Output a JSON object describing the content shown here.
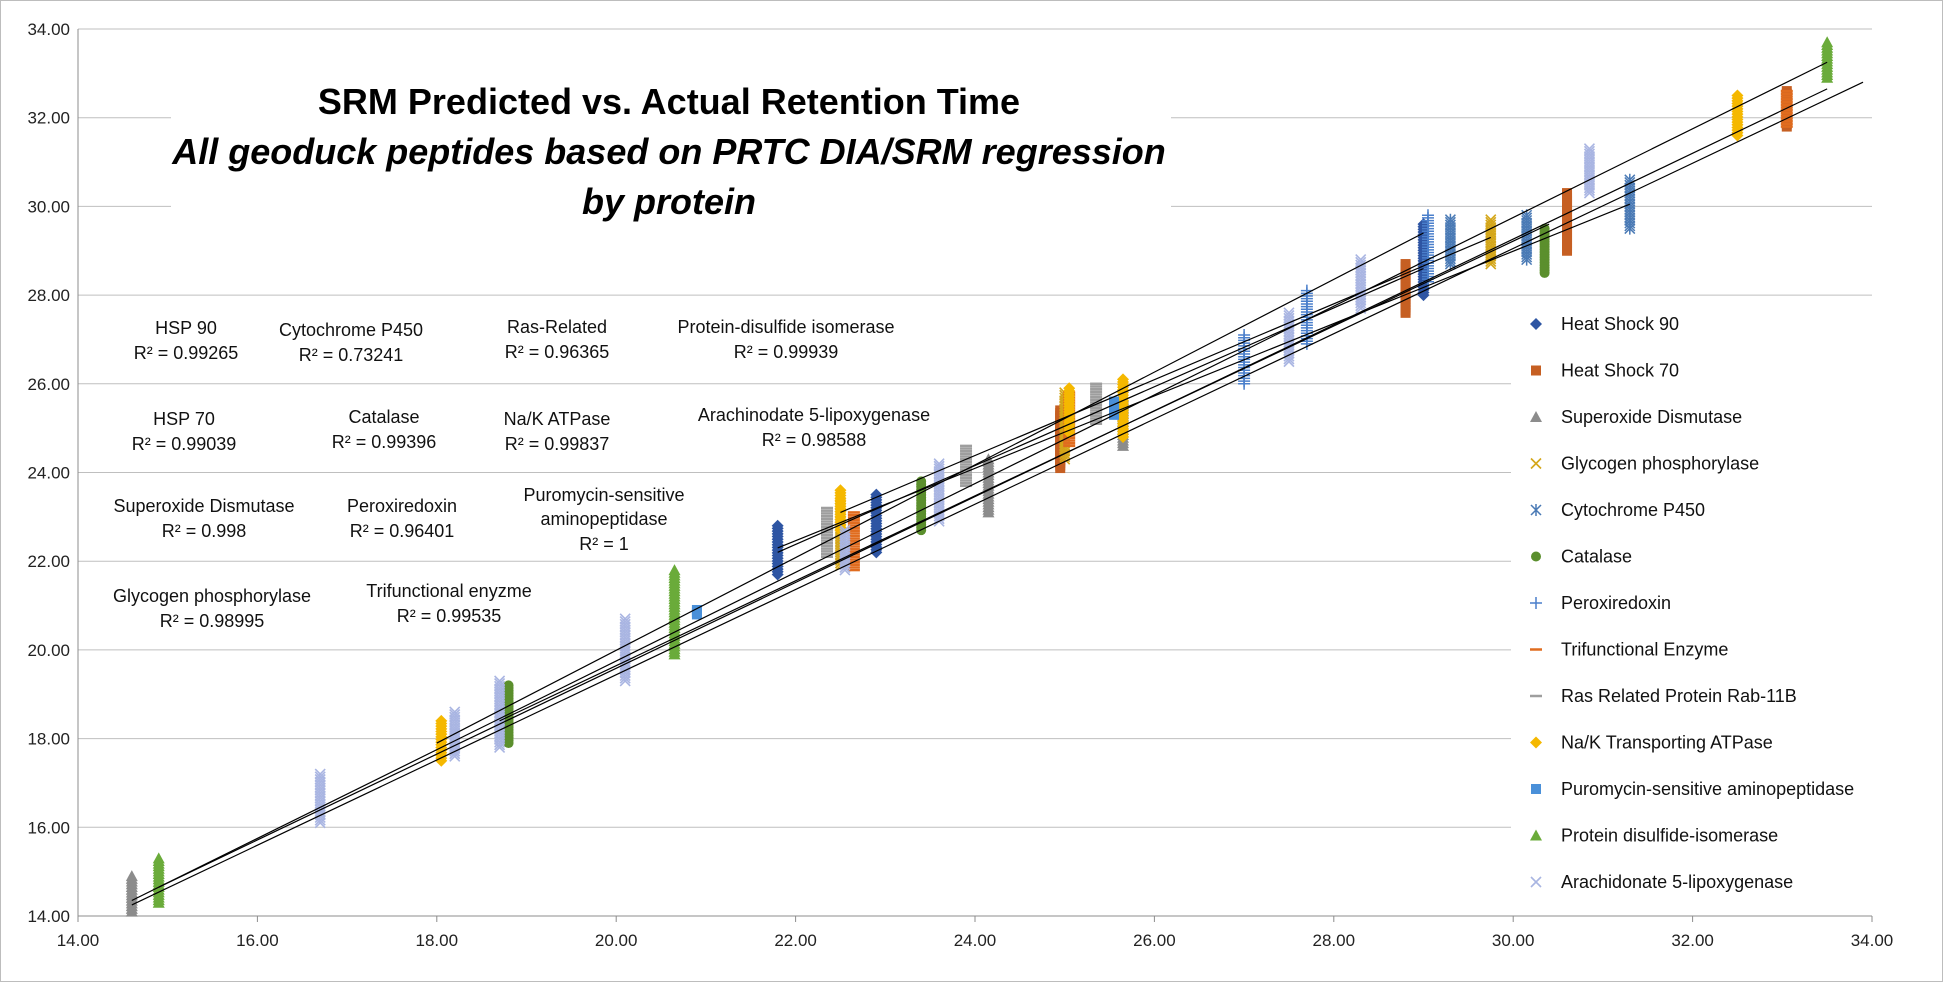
{
  "chart_data": {
    "type": "scatter",
    "title": "SRM Predicted vs. Actual Retention Time",
    "subtitle": "All geoduck peptides based on PRTC DIA/SRM regression",
    "subtitle2": "by protein",
    "xlim": [
      14,
      34
    ],
    "ylim": [
      14,
      34
    ],
    "x_ticks": [
      "14.00",
      "16.00",
      "18.00",
      "20.00",
      "22.00",
      "24.00",
      "26.00",
      "28.00",
      "30.00",
      "32.00",
      "34.00"
    ],
    "y_ticks": [
      "14.00",
      "16.00",
      "18.00",
      "20.00",
      "22.00",
      "24.00",
      "26.00",
      "28.00",
      "30.00",
      "32.00",
      "34.00"
    ],
    "grid": "horizontal",
    "legend_position": "right",
    "series": [
      {
        "name": "Heat Shock 90",
        "marker": "diamond",
        "color": "#2e55a3",
        "x": [
          21.8,
          22.9,
          29.0
        ],
        "y_low": [
          21.7,
          22.2,
          28.0
        ],
        "y_high": [
          22.8,
          23.5,
          29.6
        ]
      },
      {
        "name": "Heat Shock 70",
        "marker": "square",
        "color": "#c65f22",
        "x": [
          24.95,
          28.8,
          30.6,
          33.05
        ],
        "y_low": [
          24.1,
          27.6,
          29.0,
          31.8
        ],
        "y_high": [
          25.4,
          28.7,
          30.3,
          32.6
        ]
      },
      {
        "name": "Superoxide Dismutase",
        "marker": "triangle",
        "color": "#8c8c8c",
        "x": [
          14.6,
          24.15,
          25.65
        ],
        "y_low": [
          14.1,
          23.1,
          24.6
        ],
        "y_high": [
          14.9,
          24.3,
          25.7
        ]
      },
      {
        "name": "Glycogen phosphorylase",
        "marker": "x",
        "color": "#d4a619",
        "x": [
          22.5,
          25.0,
          29.75
        ],
        "y_low": [
          21.9,
          24.3,
          28.7
        ],
        "y_high": [
          23.5,
          25.8,
          29.7
        ]
      },
      {
        "name": "Cytochrome P450",
        "marker": "asterisk",
        "color": "#4a7ab5",
        "x": [
          29.3,
          30.15,
          31.3
        ],
        "y_low": [
          28.7,
          28.8,
          29.5
        ],
        "y_high": [
          29.7,
          29.8,
          30.6
        ]
      },
      {
        "name": "Catalase",
        "marker": "circle",
        "color": "#5b8f2d",
        "x": [
          18.8,
          23.4,
          30.35
        ],
        "y_low": [
          17.9,
          22.7,
          28.5
        ],
        "y_high": [
          19.2,
          23.8,
          29.5
        ]
      },
      {
        "name": "Peroxiredoxin",
        "marker": "plus",
        "color": "#4a7fcb",
        "x": [
          27.0,
          27.7,
          29.05
        ],
        "y_low": [
          26.0,
          26.9,
          28.3
        ],
        "y_high": [
          27.1,
          28.1,
          29.8
        ]
      },
      {
        "name": "Trifunctional Enzyme",
        "marker": "dash",
        "color": "#e06c1f",
        "x": [
          22.65,
          25.05,
          33.05
        ],
        "y_low": [
          21.8,
          24.6,
          31.8
        ],
        "y_high": [
          23.1,
          25.8,
          32.6
        ]
      },
      {
        "name": "Ras Related Protein Rab-11B",
        "marker": "dash",
        "color": "#9e9e9e",
        "x": [
          22.35,
          23.9,
          25.35
        ],
        "y_low": [
          22.1,
          23.7,
          25.1
        ],
        "y_high": [
          23.2,
          24.6,
          26.0
        ]
      },
      {
        "name": "Na/K Transporting ATPase",
        "marker": "diamond",
        "color": "#f5b800",
        "x": [
          18.05,
          22.5,
          25.05,
          25.65,
          32.5
        ],
        "y_low": [
          17.5,
          22.7,
          24.9,
          24.8,
          31.6
        ],
        "y_high": [
          18.4,
          23.6,
          25.9,
          26.1,
          32.5
        ]
      },
      {
        "name": "Puromycin-sensitive aminopeptidase",
        "marker": "square",
        "color": "#4a90d9",
        "x": [
          20.9,
          25.55
        ],
        "y_low": [
          20.8,
          25.3
        ],
        "y_high": [
          20.9,
          25.6
        ]
      },
      {
        "name": "Protein disulfide-isomerase",
        "marker": "triangle",
        "color": "#6aab3a",
        "x": [
          14.9,
          20.65,
          33.5
        ],
        "y_low": [
          14.3,
          19.9,
          32.9
        ],
        "y_high": [
          15.3,
          21.8,
          33.7
        ]
      },
      {
        "name": "Arachidonate 5-lipoxygenase",
        "marker": "x",
        "color": "#a9b5e2",
        "x": [
          16.7,
          18.2,
          18.7,
          20.1,
          22.55,
          23.6,
          27.5,
          28.3,
          30.85
        ],
        "y_low": [
          16.1,
          17.6,
          17.8,
          19.3,
          21.8,
          22.9,
          26.5,
          27.7,
          30.3
        ],
        "y_high": [
          17.2,
          18.6,
          19.3,
          20.7,
          22.7,
          24.2,
          27.6,
          28.8,
          31.3
        ]
      }
    ],
    "regression_lines": [
      {
        "x1": 14.6,
        "y1": 14.35,
        "x2": 33.5,
        "y2": 33.25
      },
      {
        "x1": 14.9,
        "y1": 14.65,
        "x2": 33.5,
        "y2": 32.65
      },
      {
        "x1": 14.6,
        "y1": 14.25,
        "x2": 33.9,
        "y2": 32.8
      },
      {
        "x1": 18.0,
        "y1": 17.9,
        "x2": 29.0,
        "y2": 29.4
      },
      {
        "x1": 18.7,
        "y1": 18.4,
        "x2": 30.4,
        "y2": 29.6
      },
      {
        "x1": 21.8,
        "y1": 22.2,
        "x2": 29.0,
        "y2": 28.6
      },
      {
        "x1": 21.8,
        "y1": 22.3,
        "x2": 31.3,
        "y2": 30.05
      },
      {
        "x1": 22.5,
        "y1": 23.1,
        "x2": 29.75,
        "y2": 29.3
      }
    ],
    "annotations": [
      {
        "name": "HSP 90",
        "r2": "R² = 0.99265"
      },
      {
        "name": "Cytochrome P450",
        "r2": "R² = 0.73241"
      },
      {
        "name": "Ras-Related",
        "r2": "R² = 0.96365"
      },
      {
        "name": "Protein-disulfide isomerase",
        "r2": "R² = 0.99939"
      },
      {
        "name": "HSP 70",
        "r2": "R² = 0.99039"
      },
      {
        "name": "Catalase",
        "r2": "R² = 0.99396"
      },
      {
        "name": "Na/K ATPase",
        "r2": "R² = 0.99837"
      },
      {
        "name": "Arachinodate 5-lipoxygenase",
        "r2": "R² = 0.98588"
      },
      {
        "name": "Superoxide Dismutase",
        "r2": "R² = 0.998"
      },
      {
        "name": "Peroxiredoxin",
        "r2": "R² = 0.96401"
      },
      {
        "name": "Puromycin-sensitive aminopeptidase",
        "name2": "aminopeptidase",
        "r2": "R² = 1"
      },
      {
        "name": "Glycogen phosphorylase",
        "r2": "R² = 0.98995"
      },
      {
        "name": "Trifunctional enyzme",
        "r2": "R² = 0.99535"
      }
    ]
  }
}
